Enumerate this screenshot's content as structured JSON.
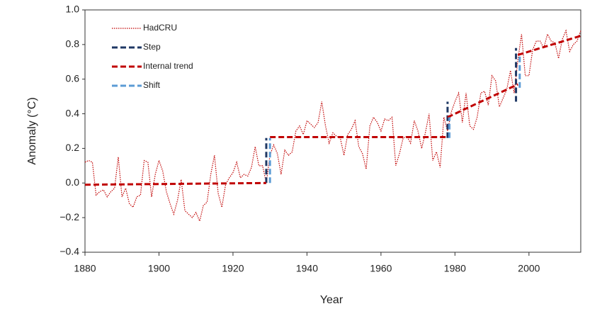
{
  "chart_data": {
    "type": "line",
    "x_label": "Year",
    "y_label": "Anomaly (°C)",
    "xlim": [
      1880,
      2014
    ],
    "ylim": [
      -0.4,
      1.0
    ],
    "xticks": [
      1880,
      1900,
      1920,
      1940,
      1960,
      1980,
      2000
    ],
    "yticks": [
      {
        "value": -0.4,
        "label": "−0.4"
      },
      {
        "value": -0.2,
        "label": "−0.2"
      },
      {
        "value": 0,
        "label": "0.0"
      },
      0.2,
      0.4,
      0.6,
      0.8,
      {
        "value": 1.0,
        "label": "1.0"
      }
    ],
    "grid": false,
    "legend": "upper left",
    "series": [
      {
        "name": "HadCRU",
        "color": "#c00000",
        "style": "dotted",
        "x": [
          1880,
          1881,
          1882,
          1883,
          1884,
          1885,
          1886,
          1887,
          1888,
          1889,
          1890,
          1891,
          1892,
          1893,
          1894,
          1895,
          1896,
          1897,
          1898,
          1899,
          1900,
          1901,
          1902,
          1903,
          1904,
          1905,
          1906,
          1907,
          1908,
          1909,
          1910,
          1911,
          1912,
          1913,
          1914,
          1915,
          1916,
          1917,
          1918,
          1919,
          1920,
          1921,
          1922,
          1923,
          1924,
          1925,
          1926,
          1927,
          1928,
          1929,
          1930,
          1931,
          1932,
          1933,
          1934,
          1935,
          1936,
          1937,
          1938,
          1939,
          1940,
          1941,
          1942,
          1943,
          1944,
          1945,
          1946,
          1947,
          1948,
          1949,
          1950,
          1951,
          1952,
          1953,
          1954,
          1955,
          1956,
          1957,
          1958,
          1959,
          1960,
          1961,
          1962,
          1963,
          1964,
          1965,
          1966,
          1967,
          1968,
          1969,
          1970,
          1971,
          1972,
          1973,
          1974,
          1975,
          1976,
          1977,
          1978,
          1979,
          1980,
          1981,
          1982,
          1983,
          1984,
          1985,
          1986,
          1987,
          1988,
          1989,
          1990,
          1991,
          1992,
          1993,
          1994,
          1995,
          1996,
          1997,
          1998,
          1999,
          2000,
          2001,
          2002,
          2003,
          2004,
          2005,
          2006,
          2007,
          2008,
          2009,
          2010,
          2011,
          2012,
          2013,
          2014
        ],
        "values": [
          0.12,
          0.13,
          0.12,
          -0.07,
          -0.05,
          -0.04,
          -0.08,
          -0.05,
          -0.03,
          0.15,
          -0.08,
          -0.03,
          -0.12,
          -0.14,
          -0.08,
          -0.07,
          0.13,
          0.12,
          -0.08,
          0.05,
          0.13,
          0.07,
          -0.05,
          -0.12,
          -0.18,
          -0.1,
          0.02,
          -0.16,
          -0.18,
          -0.2,
          -0.17,
          -0.22,
          -0.13,
          -0.11,
          0.05,
          0.16,
          -0.06,
          -0.14,
          -0.01,
          0.03,
          0.06,
          0.12,
          0.03,
          0.05,
          0.04,
          0.09,
          0.21,
          0.1,
          0.1,
          0.0,
          0.16,
          0.22,
          0.17,
          0.05,
          0.19,
          0.16,
          0.18,
          0.3,
          0.33,
          0.28,
          0.36,
          0.34,
          0.32,
          0.35,
          0.47,
          0.33,
          0.23,
          0.29,
          0.27,
          0.26,
          0.16,
          0.28,
          0.31,
          0.36,
          0.21,
          0.17,
          0.08,
          0.33,
          0.38,
          0.35,
          0.3,
          0.37,
          0.36,
          0.38,
          0.1,
          0.17,
          0.26,
          0.27,
          0.23,
          0.36,
          0.3,
          0.2,
          0.29,
          0.4,
          0.13,
          0.18,
          0.09,
          0.38,
          0.3,
          0.41,
          0.47,
          0.52,
          0.35,
          0.52,
          0.33,
          0.31,
          0.38,
          0.52,
          0.53,
          0.45,
          0.62,
          0.59,
          0.44,
          0.49,
          0.54,
          0.65,
          0.52,
          0.71,
          0.86,
          0.62,
          0.62,
          0.77,
          0.82,
          0.82,
          0.78,
          0.86,
          0.82,
          0.81,
          0.72,
          0.83,
          0.88,
          0.76,
          0.8,
          0.82,
          0.88
        ]
      },
      {
        "name": "Step",
        "color": "#1f3864",
        "style": "dashed",
        "x": [
          1929,
          1929,
          null,
          1978,
          1978,
          null,
          1996.5,
          1996.5
        ],
        "values": [
          0,
          0.26,
          null,
          0.26,
          0.47,
          null,
          0.47,
          0.78
        ]
      },
      {
        "name": "Internal trend",
        "color": "#c00000",
        "style": "dashed",
        "x": [
          1880,
          1929,
          null,
          1930,
          1978,
          null,
          1978,
          1997,
          null,
          1997,
          2014
        ],
        "values": [
          -0.01,
          0,
          null,
          0.265,
          0.265,
          null,
          0.38,
          0.57,
          null,
          0.74,
          0.85
        ]
      },
      {
        "name": "Shift",
        "color": "#5b9bd5",
        "style": "dashed",
        "x": [
          1930,
          1930,
          null,
          1978.5,
          1978.5,
          null,
          1997.5,
          1997.5
        ],
        "values": [
          0,
          0.26,
          null,
          0.26,
          0.38,
          null,
          0.55,
          0.74
        ]
      }
    ]
  }
}
